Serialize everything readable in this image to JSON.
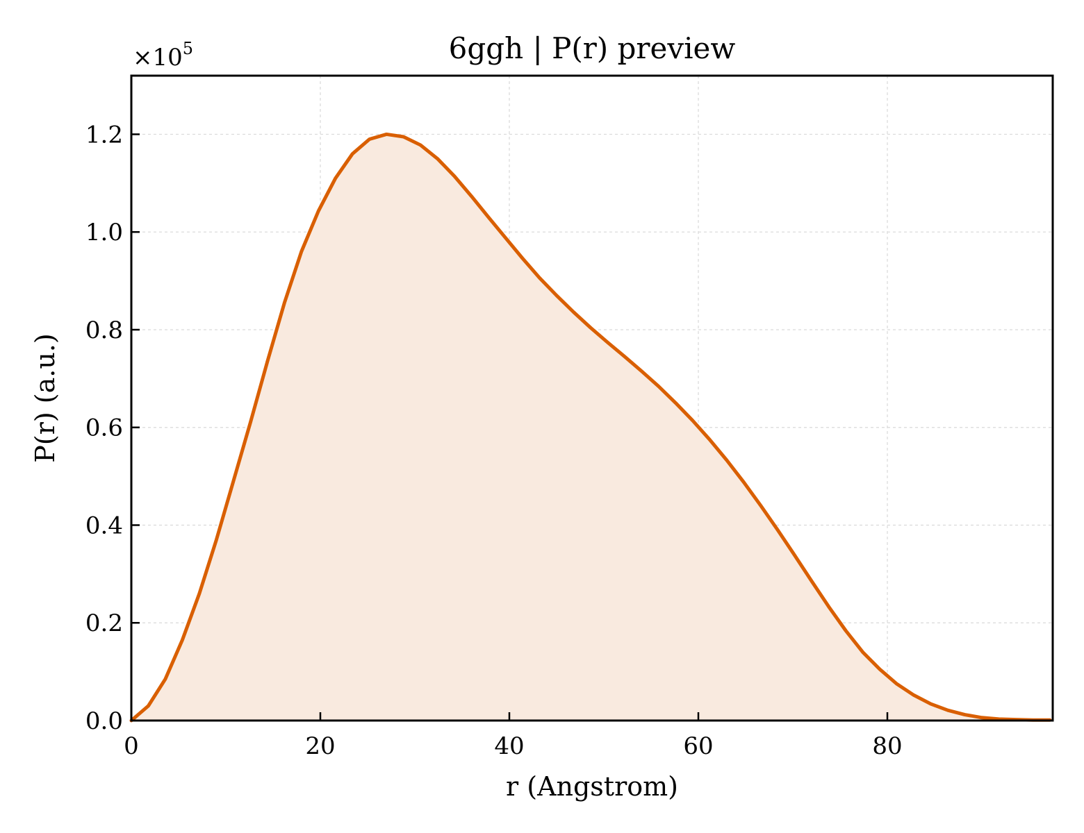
{
  "chart_data": {
    "type": "area",
    "title": "6ggh | P(r) preview",
    "xlabel": "r (Angstrom)",
    "ylabel": "P(r) (a.u.)",
    "y_offset_label": {
      "base": "×10",
      "exponent": "5"
    },
    "xlim": [
      0,
      97.5
    ],
    "ylim": [
      0,
      1.32
    ],
    "x_ticks": [
      0,
      20,
      40,
      60,
      80
    ],
    "x_tick_labels": [
      "0",
      "20",
      "40",
      "60",
      "80"
    ],
    "y_ticks": [
      0.0,
      0.2,
      0.4,
      0.6,
      0.8,
      1.0,
      1.2
    ],
    "y_tick_labels": [
      "0.0",
      "0.2",
      "0.4",
      "0.6",
      "0.8",
      "1.0",
      "1.2"
    ],
    "grid": true,
    "colors": {
      "line": "#d95f02",
      "fill": "#f9eadf",
      "grid": "#d9d9d9",
      "axes": "#000000"
    },
    "series": [
      {
        "x": [
          0,
          1.8,
          3.6,
          5.4,
          7.2,
          9.0,
          10.8,
          12.6,
          14.4,
          16.2,
          18.0,
          19.8,
          21.6,
          23.4,
          25.2,
          27.0,
          28.8,
          30.6,
          32.4,
          34.2,
          36.0,
          37.8,
          39.6,
          41.4,
          43.2,
          45.0,
          46.8,
          48.6,
          50.4,
          52.2,
          54.0,
          55.8,
          57.6,
          59.4,
          61.2,
          63.0,
          64.8,
          66.6,
          68.4,
          70.2,
          72.0,
          73.8,
          75.6,
          77.4,
          79.2,
          81.0,
          82.8,
          84.6,
          86.4,
          88.2,
          90.0,
          91.8,
          93.6,
          95.4,
          97.2
        ],
        "y": [
          0.0,
          0.03,
          0.085,
          0.165,
          0.26,
          0.37,
          0.49,
          0.61,
          0.735,
          0.855,
          0.96,
          1.043,
          1.11,
          1.16,
          1.19,
          1.2,
          1.195,
          1.178,
          1.15,
          1.114,
          1.073,
          1.03,
          0.988,
          0.946,
          0.906,
          0.87,
          0.836,
          0.804,
          0.774,
          0.745,
          0.715,
          0.684,
          0.65,
          0.614,
          0.575,
          0.533,
          0.488,
          0.44,
          0.39,
          0.338,
          0.285,
          0.233,
          0.184,
          0.14,
          0.105,
          0.075,
          0.052,
          0.034,
          0.021,
          0.012,
          0.006,
          0.003,
          0.002,
          0.001,
          0.001
        ]
      }
    ]
  }
}
